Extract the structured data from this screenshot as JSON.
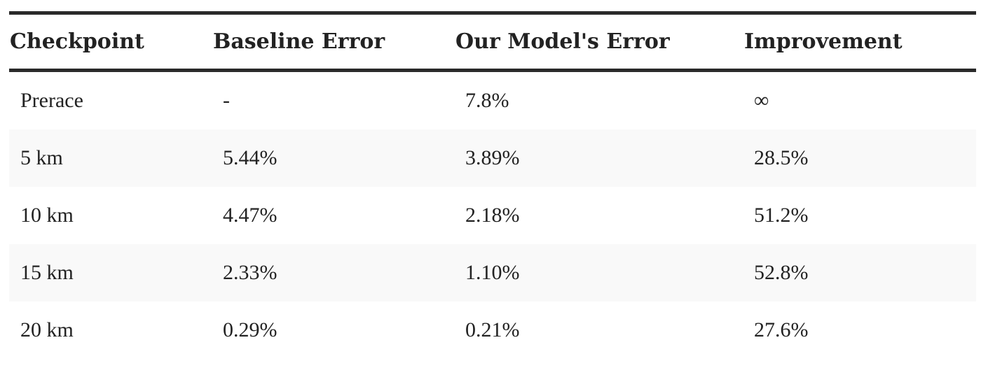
{
  "table": {
    "headers": [
      "Checkpoint",
      "Baseline Error",
      "Our Model's Error",
      "Improvement"
    ],
    "rows": [
      [
        "Prerace",
        "-",
        "7.8%",
        "∞"
      ],
      [
        "5 km",
        "5.44%",
        "3.89%",
        "28.5%"
      ],
      [
        "10 km",
        "4.47%",
        "2.18%",
        "51.2%"
      ],
      [
        "15 km",
        "2.33%",
        "1.10%",
        "52.8%"
      ],
      [
        "20 km",
        "0.29%",
        "0.21%",
        "27.6%"
      ]
    ]
  }
}
